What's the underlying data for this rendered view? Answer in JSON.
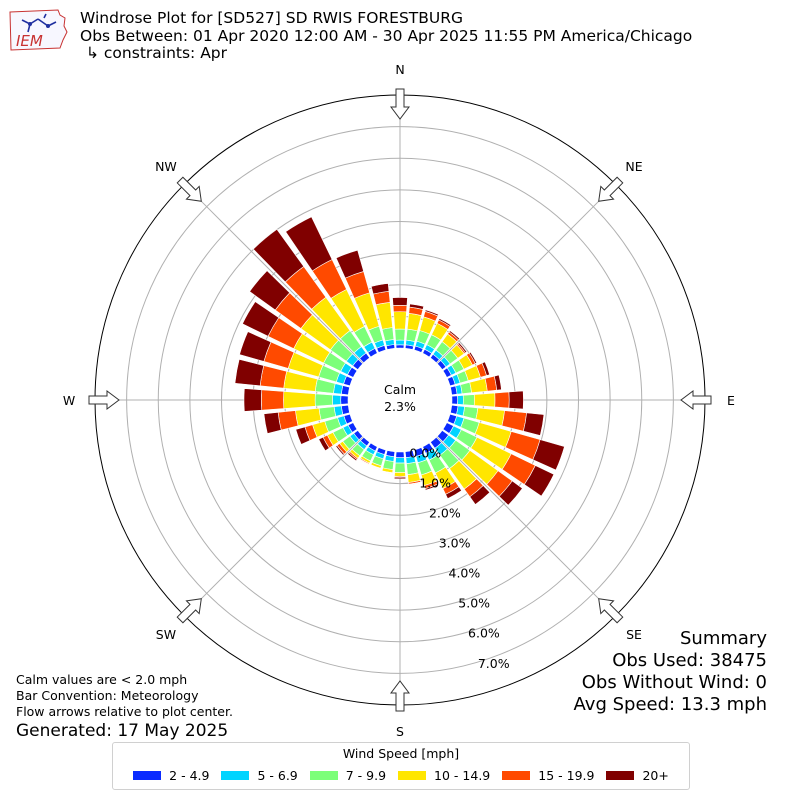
{
  "header": {
    "logo_text": "IEM",
    "title": "Windrose Plot for [SD527] SD RWIS FORESTBURG",
    "subtitle": "Obs Between: 01 Apr 2020 12:00 AM - 30 Apr 2025 11:55 PM America/Chicago",
    "constraints": "↳ constraints: Apr"
  },
  "calm": {
    "label": "Calm",
    "value": "2.3%"
  },
  "notes": {
    "line1": "Calm values are < 2.0 mph",
    "line2": "Bar Convention: Meteorology",
    "line3": "Flow arrows relative to plot center.",
    "generated": "Generated: 17 May 2025"
  },
  "summary": {
    "title": "Summary",
    "obs_used": "Obs Used: 38475",
    "obs_without_wind": "Obs Without Wind: 0",
    "avg_speed": "Avg Speed: 13.3 mph"
  },
  "chart_data": {
    "type": "windrose",
    "bar_convention": "meteorology",
    "directions": [
      0,
      10,
      20,
      30,
      40,
      50,
      60,
      70,
      80,
      90,
      100,
      110,
      120,
      130,
      140,
      150,
      160,
      170,
      180,
      190,
      200,
      210,
      220,
      230,
      240,
      250,
      260,
      270,
      280,
      290,
      300,
      310,
      320,
      330,
      340,
      350
    ],
    "compass_labels": [
      {
        "label": "N",
        "angle": 0
      },
      {
        "label": "NE",
        "angle": 45
      },
      {
        "label": "E",
        "angle": 90
      },
      {
        "label": "SE",
        "angle": 135
      },
      {
        "label": "S",
        "angle": 180
      },
      {
        "label": "SW",
        "angle": 225
      },
      {
        "label": "W",
        "angle": 270
      },
      {
        "label": "NW",
        "angle": 315
      }
    ],
    "radial_ticks": [
      0,
      1,
      2,
      3,
      4,
      5,
      6,
      7
    ],
    "radial_tick_labels": [
      "0.0%",
      "1.0%",
      "2.0%",
      "3.0%",
      "4.0%",
      "5.0%",
      "6.0%",
      "7.0%"
    ],
    "rlim": [
      0,
      8.0
    ],
    "calm_percent": 2.3,
    "legend_title": "Wind Speed [mph]",
    "legend_position": "bottom-center",
    "grid": true,
    "series": [
      {
        "name": "2 - 4.9",
        "color": "#0a2bff",
        "values": [
          0.1,
          0.11,
          0.13,
          0.14,
          0.14,
          0.15,
          0.16,
          0.17,
          0.17,
          0.18,
          0.2,
          0.22,
          0.24,
          0.25,
          0.24,
          0.23,
          0.21,
          0.19,
          0.18,
          0.16,
          0.15,
          0.15,
          0.15,
          0.16,
          0.18,
          0.2,
          0.22,
          0.23,
          0.22,
          0.21,
          0.2,
          0.2,
          0.19,
          0.17,
          0.15,
          0.12
        ]
      },
      {
        "name": "5 - 6.9",
        "color": "#00d4ff",
        "values": [
          0.15,
          0.15,
          0.16,
          0.16,
          0.16,
          0.16,
          0.16,
          0.16,
          0.16,
          0.18,
          0.21,
          0.24,
          0.27,
          0.28,
          0.27,
          0.24,
          0.21,
          0.19,
          0.17,
          0.15,
          0.14,
          0.13,
          0.14,
          0.15,
          0.18,
          0.21,
          0.23,
          0.26,
          0.25,
          0.24,
          0.24,
          0.25,
          0.25,
          0.22,
          0.18,
          0.16
        ]
      },
      {
        "name": "7 - 9.9",
        "color": "#7cff79",
        "values": [
          0.35,
          0.35,
          0.35,
          0.35,
          0.33,
          0.3,
          0.28,
          0.27,
          0.3,
          0.35,
          0.42,
          0.5,
          0.55,
          0.55,
          0.52,
          0.45,
          0.4,
          0.35,
          0.3,
          0.26,
          0.23,
          0.22,
          0.24,
          0.28,
          0.35,
          0.42,
          0.48,
          0.55,
          0.58,
          0.58,
          0.6,
          0.62,
          0.62,
          0.55,
          0.45,
          0.38
        ]
      },
      {
        "name": "10 - 14.9",
        "color": "#ffe600",
        "values": [
          0.55,
          0.5,
          0.45,
          0.4,
          0.3,
          0.25,
          0.3,
          0.4,
          0.5,
          0.65,
          0.85,
          1.05,
          1.2,
          1.1,
          0.8,
          0.55,
          0.35,
          0.25,
          0.12,
          0.1,
          0.08,
          0.08,
          0.1,
          0.12,
          0.2,
          0.4,
          0.75,
          1.0,
          1.0,
          1.0,
          1.05,
          1.15,
          1.3,
          1.3,
          1.1,
          0.8
        ]
      },
      {
        "name": "15 - 19.9",
        "color": "#ff4a00",
        "values": [
          0.2,
          0.2,
          0.18,
          0.12,
          0.08,
          0.05,
          0.1,
          0.2,
          0.3,
          0.45,
          0.7,
          0.95,
          0.85,
          0.55,
          0.3,
          0.2,
          0.1,
          0.05,
          0.03,
          0.02,
          0.02,
          0.03,
          0.05,
          0.1,
          0.15,
          0.25,
          0.55,
          0.7,
          0.75,
          0.8,
          0.9,
          1.0,
          1.2,
          1.05,
          0.7,
          0.35
        ]
      },
      {
        "name": "20+",
        "color": "#800000",
        "values": [
          0.25,
          0.1,
          0.05,
          0.05,
          0.05,
          0.05,
          0.05,
          0.1,
          0.15,
          0.45,
          0.55,
          0.8,
          0.65,
          0.4,
          0.3,
          0.15,
          0.05,
          0.02,
          0.05,
          0.02,
          0.02,
          0.02,
          0.05,
          0.05,
          0.15,
          0.3,
          0.45,
          0.55,
          0.8,
          0.8,
          0.9,
          1.0,
          1.45,
          1.5,
          0.7,
          0.25
        ]
      }
    ]
  }
}
